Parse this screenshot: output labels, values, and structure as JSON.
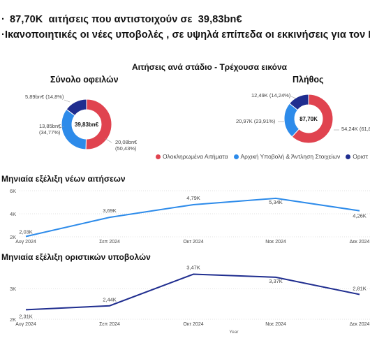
{
  "header": {
    "line1": {
      "bullet": "·",
      "count": "87,70K",
      "text_a": "αιτήσεις που αντιστοιχούν σε",
      "amount": "39,83bn€"
    },
    "line2": {
      "bullet": "·",
      "text": "Ικανοποιητικές οι νέες υποβολές , σε υψηλά επίπεδα οι εκκινήσεις για τον Ι"
    }
  },
  "donut_section": {
    "title": "Αιτήσεις ανά στάδιο - Τρέχουσα εικόνα",
    "legend": [
      {
        "label": "Ολοκληρωμένα Αιτήματα",
        "color": "#e0434f"
      },
      {
        "label": "Αρχική Υποβολή & Άντληση Στοιχείων",
        "color": "#2d8bea"
      },
      {
        "label": "Οριστ",
        "color": "#1f2d8f"
      }
    ]
  },
  "chart_data": [
    {
      "type": "pie",
      "title": "Σύνολο οφειλών",
      "center_label": "39,83bn€",
      "slices": [
        {
          "name": "Ολοκληρωμένα Αιτήματα",
          "value": 20.08,
          "label": "20,08bn€",
          "pct_label": "(50,43%)",
          "color": "#e0434f"
        },
        {
          "name": "Αρχική Υποβολή & Άντληση Στοιχείων",
          "value": 13.85,
          "label": "13,85bn€",
          "pct_label": "(34,77%)",
          "color": "#2d8bea"
        },
        {
          "name": "Οριστ",
          "value": 5.89,
          "label": "5,89bn€ (14,8%)",
          "color": "#1f2d8f"
        }
      ]
    },
    {
      "type": "pie",
      "title": "Πλήθος",
      "center_label": "87,70K",
      "slices": [
        {
          "name": "Ολοκληρωμένα Αιτήματα",
          "value": 54.24,
          "label": "54,24K (61,8",
          "color": "#e0434f"
        },
        {
          "name": "Αρχική Υποβολή & Άντληση Στοιχείων",
          "value": 20.97,
          "label": "20,97K (23,91%)",
          "color": "#2d8bea"
        },
        {
          "name": "Οριστ",
          "value": 12.49,
          "label": "12,49K (14,24%)",
          "color": "#1f2d8f"
        }
      ]
    },
    {
      "type": "line",
      "title": "Μηνιαία εξέλιξη νέων αιτήσεων",
      "categories": [
        "Αυγ 2024",
        "Σεπ 2024",
        "Οκτ 2024",
        "Νοε 2024",
        "Δεκ 2024"
      ],
      "values": [
        2.03,
        3.69,
        4.79,
        5.34,
        4.26
      ],
      "data_labels": [
        "2,03K",
        "3,69K",
        "4,79K",
        "5,34K",
        "4,26K"
      ],
      "y_ticks": [
        "6K",
        "4K",
        "2K"
      ],
      "y_tick_values": [
        6,
        4,
        2
      ],
      "ylim": [
        2,
        6
      ],
      "color": "#2d8bea"
    },
    {
      "type": "line",
      "title": "Μηνιαία εξέλιξη οριστικών υποβολών",
      "categories": [
        "Αυγ 2024",
        "Σεπ 2024",
        "Οκτ 2024",
        "Νοε 2024",
        "Δεκ 2024"
      ],
      "values": [
        2.31,
        2.44,
        3.47,
        3.37,
        2.81
      ],
      "data_labels": [
        "2,31K",
        "2,44K",
        "3,47K",
        "3,37K",
        "2,81K"
      ],
      "y_ticks": [
        "3K",
        "2K"
      ],
      "y_tick_values": [
        3,
        2
      ],
      "ylim": [
        2,
        3.55
      ],
      "xlabel": "Year",
      "color": "#1f2d8f"
    }
  ]
}
